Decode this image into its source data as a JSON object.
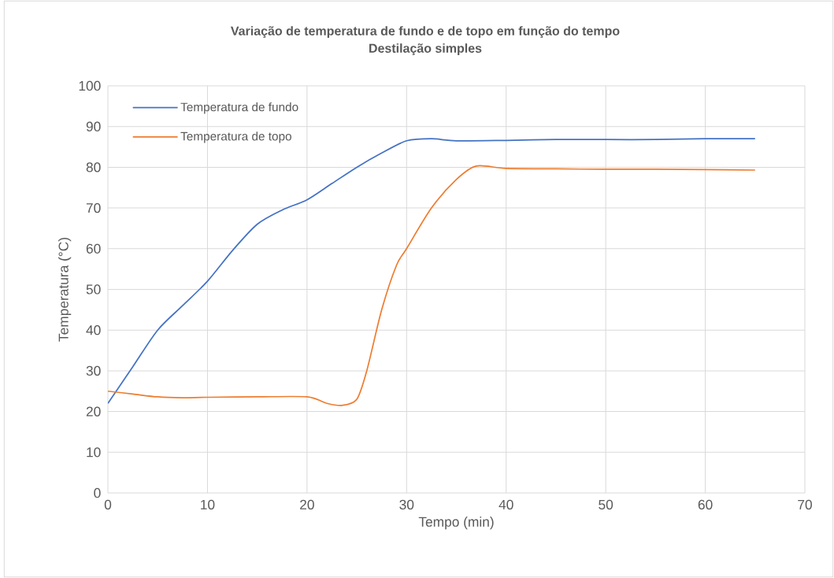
{
  "chart_data": {
    "type": "line",
    "title": "Variação de temperatura de fundo e de topo em função do tempo",
    "subtitle": "Destilação simples",
    "xlabel": "Tempo (min)",
    "ylabel": "Temperatura  (°C)",
    "xlim": [
      0,
      70
    ],
    "xticks": [
      0,
      10,
      20,
      30,
      40,
      50,
      60,
      70
    ],
    "ylim": [
      0,
      100
    ],
    "yticks": [
      0,
      10,
      20,
      30,
      40,
      50,
      60,
      70,
      80,
      90,
      100
    ],
    "grid": true,
    "legend": "top left",
    "marker": "none",
    "line_style": "solid",
    "series": [
      {
        "name": "Temperatura de fundo",
        "color": "#4472c4",
        "x": [
          0,
          2.5,
          5,
          7.5,
          10,
          12.5,
          15,
          17.5,
          20,
          22.5,
          25,
          27.5,
          30,
          32.5,
          35,
          40,
          45,
          50,
          55,
          60,
          65
        ],
        "values": [
          22,
          31,
          40,
          46,
          52,
          59.5,
          66,
          69.5,
          72,
          76,
          80,
          83.5,
          86.5,
          87,
          86.5,
          86.6,
          86.8,
          86.8,
          86.8,
          87,
          87
        ]
      },
      {
        "name": "Temperatura de topo",
        "color": "#ed7d31",
        "x": [
          0,
          2.5,
          5,
          7.5,
          10,
          15,
          20,
          22,
          23.5,
          25,
          26,
          27.5,
          29,
          30,
          32.5,
          35,
          37,
          40,
          45,
          50,
          55,
          60,
          65
        ],
        "values": [
          25,
          24.3,
          23.6,
          23.4,
          23.5,
          23.6,
          23.6,
          22,
          21.5,
          23,
          30,
          45,
          56,
          60,
          70,
          77,
          80.3,
          79.7,
          79.6,
          79.5,
          79.5,
          79.4,
          79.3
        ]
      }
    ]
  }
}
